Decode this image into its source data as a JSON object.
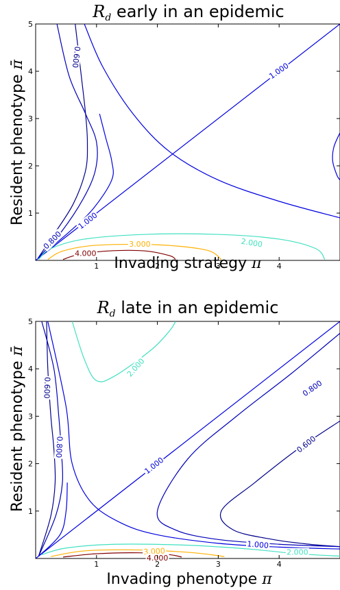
{
  "chart_data": [
    {
      "type": "contour",
      "title": "R_d early in an epidemic",
      "xlabel": "Invading strategy π",
      "ylabel": "Resident phenotype π̄",
      "xlim": [
        0,
        5
      ],
      "ylim": [
        0,
        5
      ],
      "xticks": [
        "1",
        "2",
        "3",
        "4"
      ],
      "yticks": [
        "1",
        "2",
        "3",
        "4",
        "5"
      ],
      "levels": [
        {
          "name": "0.600",
          "color": "#00008b",
          "lines": [
            [
              [
                0.65,
                5
              ],
              [
                0.75,
                3.9
              ],
              [
                0.82,
                3.1
              ],
              [
                0.85,
                2.5
              ],
              [
                0.82,
                1.9
              ],
              [
                0.62,
                1.2
              ],
              [
                0.3,
                0.55
              ],
              [
                0.04,
                0.05
              ]
            ]
          ]
        },
        {
          "name": "0.800",
          "color": "#0000b8",
          "lines": [
            [
              [
                0.35,
                5
              ],
              [
                0.55,
                3.9
              ],
              [
                0.82,
                3.1
              ],
              [
                1.0,
                2.5
              ],
              [
                0.98,
                1.9
              ],
              [
                0.78,
                1.3
              ],
              [
                0.42,
                0.6
              ],
              [
                0.04,
                0.05
              ]
            ]
          ]
        },
        {
          "name": "1.000",
          "color": "#0000e0",
          "lines": [
            [
              [
                0,
                0
              ],
              [
                5,
                5
              ]
            ],
            [
              [
                0.8,
                5
              ],
              [
                1.1,
                4.1
              ],
              [
                1.6,
                3.1
              ],
              [
                2.2,
                2.3
              ],
              [
                3.0,
                1.7
              ],
              [
                4.0,
                1.25
              ],
              [
                5.0,
                0.9
              ]
            ],
            [
              [
                0.04,
                0.05
              ],
              [
                0.55,
                0.6
              ],
              [
                0.95,
                1.1
              ],
              [
                1.25,
                1.7
              ],
              [
                1.25,
                2.1
              ],
              [
                1.15,
                2.6
              ],
              [
                1.05,
                3.1
              ]
            ],
            [
              [
                5,
                2.7
              ],
              [
                4.9,
                2.4
              ],
              [
                4.88,
                2.1
              ],
              [
                4.95,
                1.8
              ],
              [
                5,
                1.7
              ]
            ]
          ]
        },
        {
          "name": "2.000",
          "color": "#40e0c0",
          "lines": [
            [
              [
                0.05,
                0.02
              ],
              [
                0.25,
                0.25
              ],
              [
                0.8,
                0.45
              ],
              [
                1.8,
                0.55
              ],
              [
                3.0,
                0.55
              ],
              [
                4.0,
                0.45
              ],
              [
                4.6,
                0.25
              ],
              [
                4.75,
                0.02
              ]
            ]
          ]
        },
        {
          "name": "3.000",
          "color": "#ffb000",
          "lines": [
            [
              [
                0.2,
                0.02
              ],
              [
                0.45,
                0.2
              ],
              [
                1.0,
                0.32
              ],
              [
                2.0,
                0.33
              ],
              [
                2.8,
                0.22
              ],
              [
                3.05,
                0.02
              ]
            ]
          ]
        },
        {
          "name": "4.000",
          "color": "#800000",
          "lines": [
            [
              [
                0.45,
                0.02
              ],
              [
                0.7,
                0.12
              ],
              [
                1.2,
                0.2
              ],
              [
                1.8,
                0.2
              ],
              [
                2.2,
                0.1
              ],
              [
                2.3,
                0.02
              ]
            ]
          ]
        }
      ],
      "contour_labels": [
        {
          "text": "0.600",
          "x": 0.66,
          "y": 4.3,
          "angle": 97,
          "color": "#00008b"
        },
        {
          "text": "1.000",
          "x": 4.0,
          "y": 4.0,
          "angle": -35,
          "color": "#0000e0"
        },
        {
          "text": "1.000",
          "x": 0.86,
          "y": 0.83,
          "angle": -38,
          "color": "#0000e0"
        },
        {
          "text": "0.800",
          "x": 0.28,
          "y": 0.42,
          "angle": -45,
          "color": "#0000b8"
        },
        {
          "text": "2.000",
          "x": 3.55,
          "y": 0.36,
          "angle": 9,
          "color": "#40e0c0"
        },
        {
          "text": "3.000",
          "x": 1.71,
          "y": 0.33,
          "angle": 0,
          "color": "#ffb000"
        },
        {
          "text": "4.000",
          "x": 0.82,
          "y": 0.14,
          "angle": 0,
          "color": "#800000"
        }
      ]
    },
    {
      "type": "contour",
      "title": "R_d late in an epidemic",
      "xlabel": "Invading phenotype π",
      "ylabel": "Resident phenotype π̄",
      "xlim": [
        0,
        5
      ],
      "ylim": [
        0,
        5
      ],
      "xticks": [
        "1",
        "2",
        "3",
        "4"
      ],
      "yticks": [
        "1",
        "2",
        "3",
        "4",
        "5"
      ],
      "levels": [
        {
          "name": "0.600",
          "color": "#00008b",
          "lines": [
            [
              [
                0.18,
                5
              ],
              [
                0.2,
                4.0
              ],
              [
                0.25,
                3.0
              ],
              [
                0.3,
                2.3
              ],
              [
                0.32,
                1.6
              ],
              [
                0.25,
                0.9
              ],
              [
                0.05,
                0.05
              ]
            ],
            [
              [
                5,
                2.9
              ],
              [
                4.3,
                2.3
              ],
              [
                3.6,
                1.6
              ],
              [
                3.05,
                1.0
              ],
              [
                3.25,
                0.6
              ],
              [
                3.9,
                0.4
              ],
              [
                4.5,
                0.3
              ],
              [
                5,
                0.25
              ]
            ]
          ]
        },
        {
          "name": "0.800",
          "color": "#0000b8",
          "lines": [
            [
              [
                0.1,
                5
              ],
              [
                0.3,
                4.0
              ],
              [
                0.38,
                3.0
              ],
              [
                0.42,
                2.3
              ],
              [
                0.44,
                1.6
              ],
              [
                0.33,
                0.9
              ],
              [
                0.05,
                0.05
              ]
            ],
            [
              [
                5,
                4.75
              ],
              [
                4.2,
                3.9
              ],
              [
                3.3,
                3.0
              ],
              [
                2.5,
                2.1
              ],
              [
                2.0,
                1.0
              ],
              [
                2.3,
                0.6
              ],
              [
                3.0,
                0.4
              ],
              [
                4.0,
                0.3
              ],
              [
                5,
                0.25
              ]
            ]
          ]
        },
        {
          "name": "1.000",
          "color": "#0000e0",
          "lines": [
            [
              [
                0,
                0
              ],
              [
                5,
                5
              ]
            ],
            [
              [
                0.2,
                5
              ],
              [
                0.5,
                3.2
              ],
              [
                0.6,
                2.0
              ],
              [
                0.9,
                1.2
              ],
              [
                1.4,
                0.75
              ],
              [
                2.0,
                0.5
              ],
              [
                3.0,
                0.32
              ],
              [
                4.0,
                0.24
              ],
              [
                5,
                0.2
              ]
            ],
            [
              [
                0.05,
                0.05
              ],
              [
                0.4,
                0.5
              ],
              [
                0.5,
                1.0
              ],
              [
                0.52,
                1.6
              ]
            ]
          ]
        },
        {
          "name": "2.000",
          "color": "#40e0c0",
          "lines": [
            [
              [
                0.6,
                5
              ],
              [
                0.8,
                4.2
              ],
              [
                1.0,
                3.75
              ],
              [
                1.3,
                3.85
              ],
              [
                1.9,
                4.4
              ],
              [
                2.2,
                4.8
              ],
              [
                2.3,
                5
              ]
            ],
            [
              [
                0.1,
                0.08
              ],
              [
                0.5,
                0.22
              ],
              [
                1.3,
                0.3
              ],
              [
                2.5,
                0.28
              ],
              [
                3.5,
                0.2
              ],
              [
                4.3,
                0.1
              ],
              [
                5,
                0.05
              ]
            ]
          ]
        },
        {
          "name": "3.000",
          "color": "#ffb000",
          "lines": [
            [
              [
                0.25,
                0.04
              ],
              [
                0.8,
                0.16
              ],
              [
                1.7,
                0.18
              ],
              [
                2.6,
                0.12
              ],
              [
                3.1,
                0.04
              ]
            ]
          ]
        },
        {
          "name": "4.000",
          "color": "#800000",
          "lines": [
            [
              [
                0.45,
                0.03
              ],
              [
                1.0,
                0.1
              ],
              [
                1.7,
                0.12
              ],
              [
                2.2,
                0.08
              ],
              [
                2.4,
                0.03
              ]
            ]
          ]
        }
      ],
      "contour_labels": [
        {
          "text": "2.000",
          "x": 1.65,
          "y": 4.02,
          "angle": -48,
          "color": "#40e0c0"
        },
        {
          "text": "0.600",
          "x": 0.18,
          "y": 3.6,
          "angle": 92,
          "color": "#00008b"
        },
        {
          "text": "0.800",
          "x": 0.38,
          "y": 2.35,
          "angle": 93,
          "color": "#0000b8"
        },
        {
          "text": "0.800",
          "x": 4.55,
          "y": 3.58,
          "angle": -35,
          "color": "#0000b8"
        },
        {
          "text": "0.600",
          "x": 4.45,
          "y": 2.4,
          "angle": -38,
          "color": "#00008b"
        },
        {
          "text": "1.000",
          "x": 1.95,
          "y": 1.95,
          "angle": -38,
          "color": "#0000e0"
        },
        {
          "text": "1.000",
          "x": 3.65,
          "y": 0.28,
          "angle": 5,
          "color": "#0000e0"
        },
        {
          "text": "2.000",
          "x": 4.3,
          "y": 0.12,
          "angle": 0,
          "color": "#40e0c0"
        },
        {
          "text": "3.000",
          "x": 1.95,
          "y": 0.14,
          "angle": -3,
          "color": "#ffb000"
        },
        {
          "text": "4.000",
          "x": 2.0,
          "y": 0.0,
          "angle": 0,
          "color": "#800000"
        }
      ]
    }
  ]
}
